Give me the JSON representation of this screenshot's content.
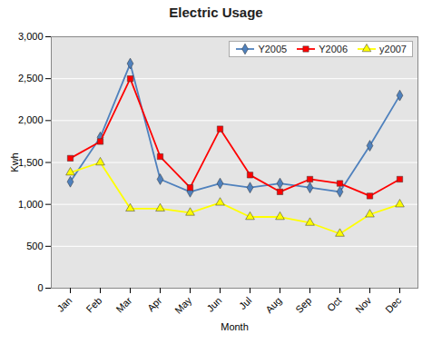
{
  "chart_data": {
    "type": "line",
    "title": "Electric Usage",
    "xlabel": "Month",
    "ylabel": "Kwh",
    "categories": [
      "Jan",
      "Feb",
      "Mar",
      "Apr",
      "May",
      "Jun",
      "Jul",
      "Aug",
      "Sep",
      "Oct",
      "Nov",
      "Dec"
    ],
    "series": [
      {
        "name": "Y2005",
        "color": "#4F81BD",
        "marker": "diamond",
        "values": [
          1270,
          1800,
          2680,
          1300,
          1150,
          1250,
          1200,
          1250,
          1200,
          1150,
          1700,
          2300
        ]
      },
      {
        "name": "Y2006",
        "color": "#FF0000",
        "marker": "square",
        "values": [
          1550,
          1750,
          2500,
          1570,
          1200,
          1900,
          1350,
          1150,
          1300,
          1250,
          1100,
          1300
        ]
      },
      {
        "name": "y2007",
        "color": "#FFFF00",
        "marker": "triangle",
        "values": [
          1380,
          1500,
          950,
          950,
          900,
          1020,
          850,
          850,
          780,
          650,
          880,
          1000
        ]
      }
    ],
    "ylim": [
      0,
      3000
    ],
    "yticks": [
      0,
      500,
      1000,
      1500,
      2000,
      2500,
      3000
    ],
    "grid": true,
    "legend": "upper right"
  }
}
